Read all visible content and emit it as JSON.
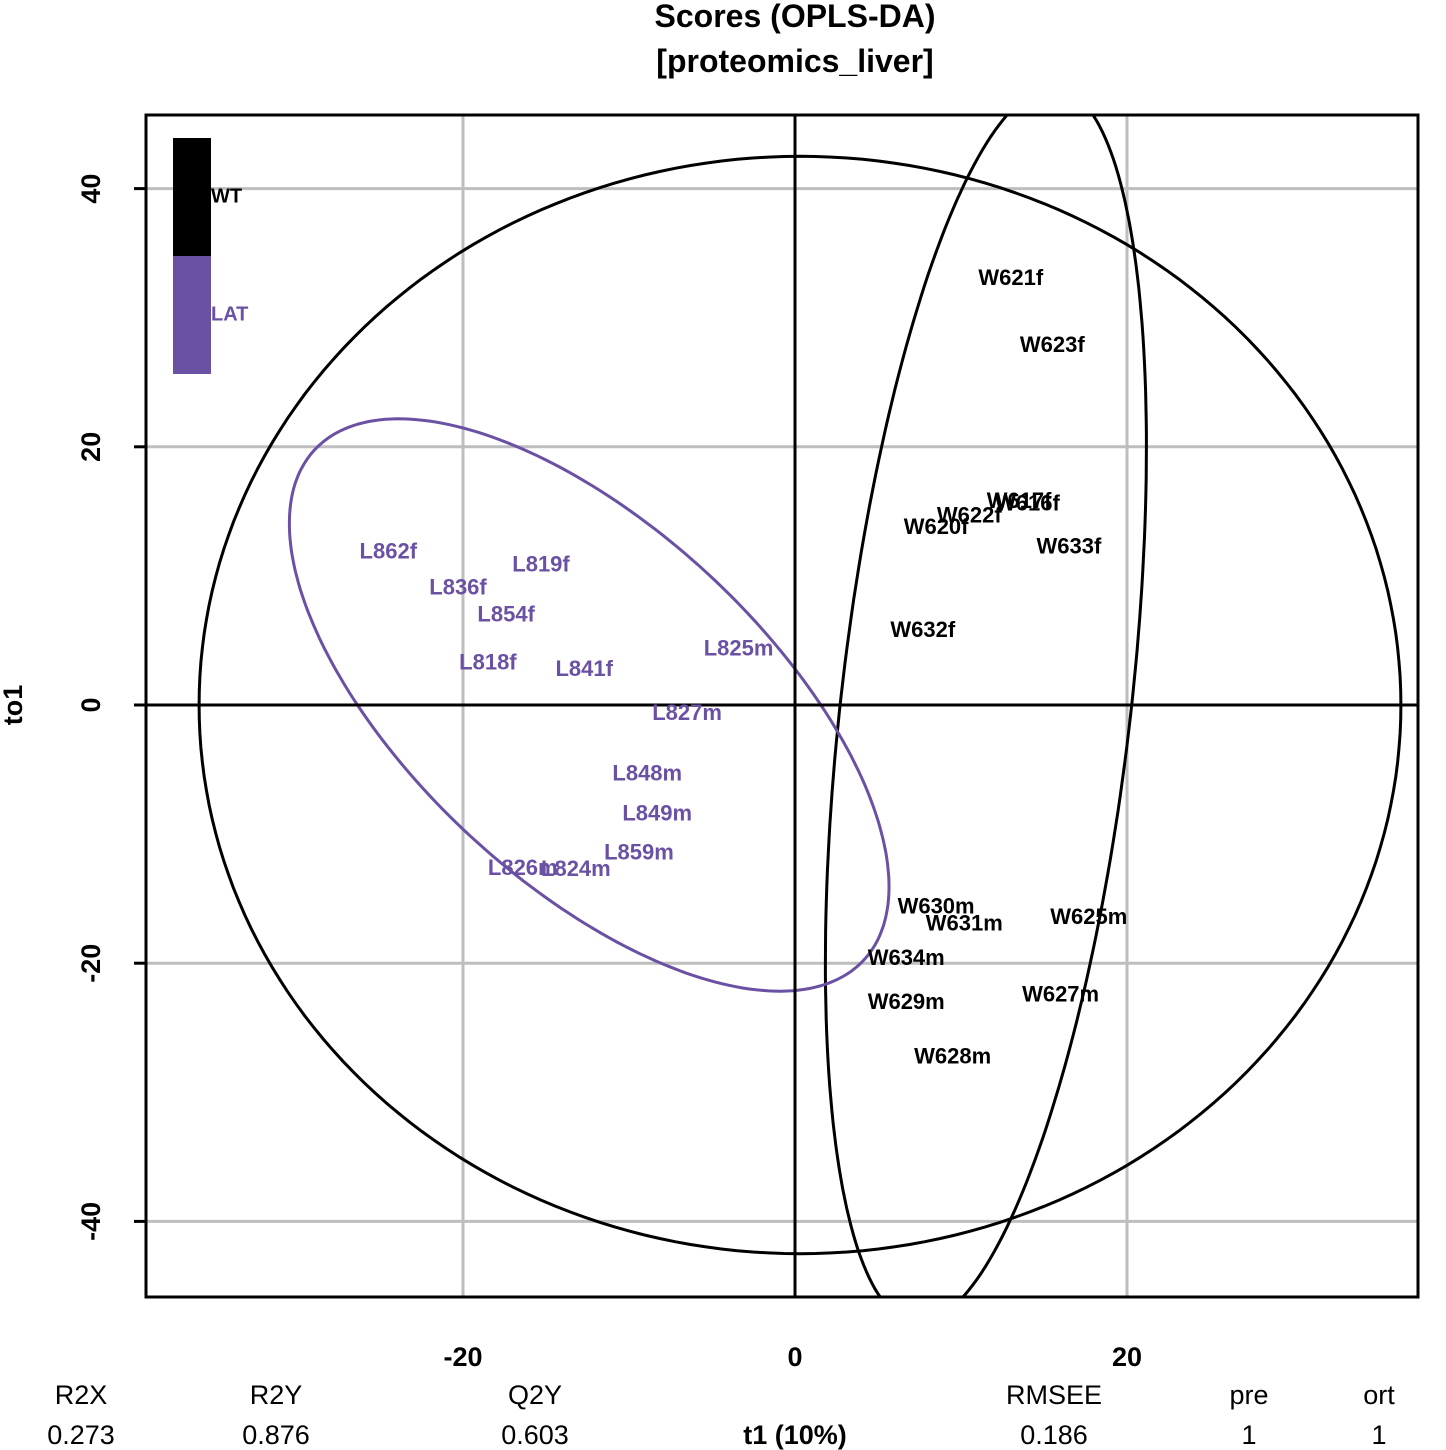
{
  "chart_data": {
    "type": "scatter",
    "title": "Scores (OPLS-DA)",
    "subtitle": "[proteomics_liver]",
    "xlabel": "t1 (10%)",
    "ylabel": "to1",
    "xlim": [
      -39,
      39
    ],
    "ylim": [
      -46,
      46
    ],
    "xticks": [
      -20,
      0,
      20
    ],
    "xtick_labels": [
      "-20",
      "0",
      "20"
    ],
    "yticks": [
      -40,
      -20,
      0,
      20,
      40
    ],
    "ytick_labels": [
      "-40",
      "-20",
      "0",
      "20",
      "40"
    ],
    "grid": true,
    "legend": {
      "placement": "top-left",
      "entries": [
        {
          "name": "WT",
          "color": "#000000"
        },
        {
          "name": "LAT",
          "color": "#6a51a3"
        }
      ]
    },
    "colors": {
      "WT": "#000000",
      "LAT": "#6a51a3",
      "grid": "#bebebe"
    },
    "series": [
      {
        "name": "WT",
        "points": [
          {
            "label": "W621f",
            "x": 13.0,
            "y": 33.0
          },
          {
            "label": "W623f",
            "x": 15.5,
            "y": 27.8
          },
          {
            "label": "W617f",
            "x": 13.5,
            "y": 15.7
          },
          {
            "label": "W616f",
            "x": 14.0,
            "y": 15.5
          },
          {
            "label": "W622f",
            "x": 10.5,
            "y": 14.6
          },
          {
            "label": "W620f",
            "x": 8.5,
            "y": 13.7
          },
          {
            "label": "W633f",
            "x": 16.5,
            "y": 12.2
          },
          {
            "label": "W632f",
            "x": 7.7,
            "y": 5.7
          },
          {
            "label": "W630m",
            "x": 8.5,
            "y": -15.7
          },
          {
            "label": "W631m",
            "x": 10.2,
            "y": -17.0
          },
          {
            "label": "W625m",
            "x": 17.7,
            "y": -16.5
          },
          {
            "label": "W634m",
            "x": 6.7,
            "y": -19.7
          },
          {
            "label": "W627m",
            "x": 16.0,
            "y": -22.5
          },
          {
            "label": "W629m",
            "x": 6.7,
            "y": -23.1
          },
          {
            "label": "W628m",
            "x": 9.5,
            "y": -27.3
          }
        ]
      },
      {
        "name": "LAT",
        "points": [
          {
            "label": "L862f",
            "x": -24.5,
            "y": 11.8
          },
          {
            "label": "L819f",
            "x": -15.3,
            "y": 10.8
          },
          {
            "label": "L836f",
            "x": -20.3,
            "y": 9.0
          },
          {
            "label": "L854f",
            "x": -17.4,
            "y": 6.9
          },
          {
            "label": "L825m",
            "x": -3.4,
            "y": 4.3
          },
          {
            "label": "L818f",
            "x": -18.5,
            "y": 3.2
          },
          {
            "label": "L841f",
            "x": -12.7,
            "y": 2.7
          },
          {
            "label": "L827m",
            "x": -6.5,
            "y": -0.7
          },
          {
            "label": "L848m",
            "x": -8.9,
            "y": -5.4
          },
          {
            "label": "L849m",
            "x": -8.3,
            "y": -8.5
          },
          {
            "label": "L859m",
            "x": -9.4,
            "y": -11.5
          },
          {
            "label": "L826m",
            "x": -16.4,
            "y": -12.7
          },
          {
            "label": "L824m",
            "x": -13.2,
            "y": -12.8
          }
        ]
      }
    ],
    "ellipses": [
      {
        "name": "overall",
        "center": [
          0.3,
          0.0
        ],
        "radii": [
          36.2,
          42.5
        ],
        "angle_deg": 0
      },
      {
        "name": "WT",
        "center": [
          11.5,
          0.0
        ],
        "radii": [
          48.0,
          8.75
        ],
        "angle_deg": 85
      },
      {
        "name": "LAT",
        "center": [
          -12.4,
          0.0
        ],
        "radii": [
          26.0,
          11.9
        ],
        "angle_deg": -54
      }
    ],
    "stats": {
      "names": [
        "R2X",
        "R2Y",
        "Q2Y",
        "RMSEE",
        "pre",
        "ort"
      ],
      "values": [
        "0.273",
        "0.876",
        "0.603",
        "0.186",
        "1",
        "1"
      ]
    }
  }
}
